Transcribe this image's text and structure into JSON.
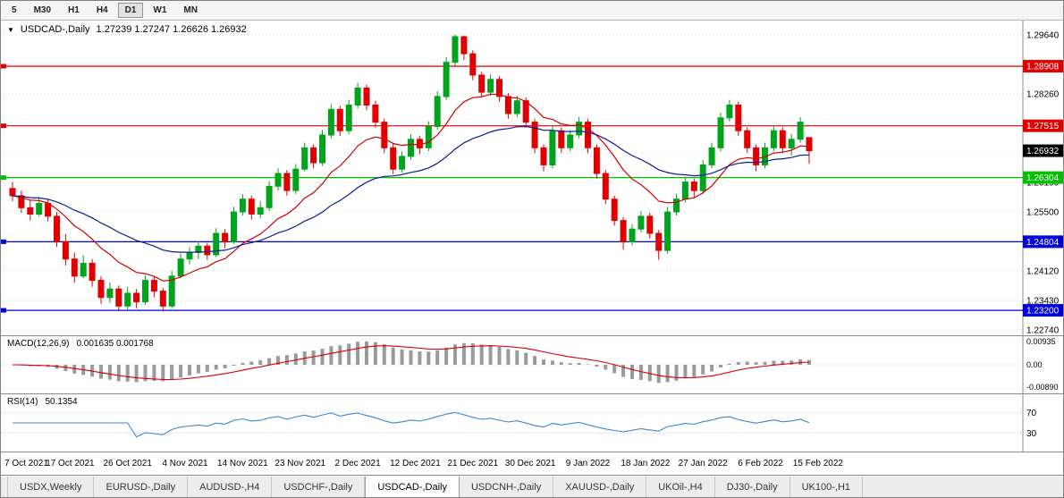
{
  "toolbar": {
    "timeframes": [
      {
        "label": "5",
        "active": false
      },
      {
        "label": "M30",
        "active": false
      },
      {
        "label": "H1",
        "active": false
      },
      {
        "label": "H4",
        "active": false
      },
      {
        "label": "D1",
        "active": true
      },
      {
        "label": "W1",
        "active": false
      },
      {
        "label": "MN",
        "active": false
      }
    ]
  },
  "icons": {
    "chart_dropdown": "▼"
  },
  "main_chart": {
    "title": "USDCAD-,Daily",
    "ohlc_text": "1.27239 1.27247 1.26626 1.26932",
    "axis_ticks": [
      "1.29640",
      "1.28950",
      "1.28260",
      "1.27570",
      "1.26880",
      "1.26190",
      "1.25500",
      "1.24810",
      "1.24120",
      "1.23430",
      "1.22740"
    ],
    "hlines": [
      {
        "price": 1.28908,
        "label": "1.28908",
        "color": "#e00000"
      },
      {
        "price": 1.27515,
        "label": "1.27515",
        "color": "#e00000"
      },
      {
        "price": 1.26304,
        "label": "1.26304",
        "color": "#00c000"
      },
      {
        "price": 1.24804,
        "label": "1.24804",
        "color": "#0000d8"
      },
      {
        "price": 1.232,
        "label": "1.23200",
        "color": "#0000d8"
      }
    ],
    "current_price": {
      "price": 1.26932,
      "label": "1.26932",
      "color": "#000000"
    }
  },
  "macd": {
    "title": "MACD(12,26,9)",
    "values": "0.001635 0.001768",
    "axis_top": "0.00935",
    "axis_mid": "0.00",
    "axis_bottom": "-0.00890"
  },
  "rsi": {
    "title": "RSI(14)",
    "value": "50.1354",
    "level_top": "70",
    "level_bottom": "30"
  },
  "date_axis": {
    "labels": [
      "7 Oct 2021",
      "17 Oct 2021",
      "26 Oct 2021",
      "4 Nov 2021",
      "14 Nov 2021",
      "23 Nov 2021",
      "2 Dec 2021",
      "12 Dec 2021",
      "21 Dec 2021",
      "30 Dec 2021",
      "9 Jan 2022",
      "18 Jan 2022",
      "27 Jan 2022",
      "6 Feb 2022",
      "15 Feb 2022"
    ]
  },
  "tabs": [
    {
      "label": "USDX,Weekly",
      "active": false
    },
    {
      "label": "EURUSD-,Daily",
      "active": false
    },
    {
      "label": "AUDUSD-,H4",
      "active": false
    },
    {
      "label": "USDCHF-,Daily",
      "active": false
    },
    {
      "label": "USDCAD-,Daily",
      "active": true
    },
    {
      "label": "USDCNH-,Daily",
      "active": false
    },
    {
      "label": "XAUUSD-,Daily",
      "active": false
    },
    {
      "label": "UKOil-,H4",
      "active": false
    },
    {
      "label": "DJ30-,Daily",
      "active": false
    },
    {
      "label": "UK100-,H1",
      "active": false
    }
  ],
  "chart_data": {
    "type": "candlestick",
    "symbol": "USDCAD",
    "timeframe": "Daily",
    "price_range": {
      "top": 1.2985,
      "bottom": 1.227
    },
    "ma_fast": {
      "period": 12,
      "color": "#d40000"
    },
    "ma_slow": {
      "period": 30,
      "color": "#0a1d94"
    },
    "colors": {
      "up": "#00a41c",
      "down": "#e00000",
      "macd_hist": "#9a9a9a",
      "macd_signal": "#d40000",
      "rsi_line": "#3d85c8",
      "grid": "#d2d2d2"
    },
    "candles": [
      [
        1.2605,
        1.262,
        1.2575,
        1.2588
      ],
      [
        1.2588,
        1.26,
        1.2548,
        1.256
      ],
      [
        1.256,
        1.2578,
        1.253,
        1.2545
      ],
      [
        1.2545,
        1.2585,
        1.254,
        1.257
      ],
      [
        1.257,
        1.258,
        1.2528,
        1.254
      ],
      [
        1.254,
        1.255,
        1.2468,
        1.248
      ],
      [
        1.248,
        1.2498,
        1.2425,
        1.244
      ],
      [
        1.244,
        1.2455,
        1.2385,
        1.24
      ],
      [
        1.24,
        1.2448,
        1.2395,
        1.243
      ],
      [
        1.243,
        1.244,
        1.2375,
        1.239
      ],
      [
        1.239,
        1.24,
        1.2335,
        1.235
      ],
      [
        1.235,
        1.2385,
        1.2338,
        1.237
      ],
      [
        1.237,
        1.2378,
        1.2318,
        1.233
      ],
      [
        1.233,
        1.2375,
        1.2322,
        1.236
      ],
      [
        1.236,
        1.237,
        1.2325,
        1.234
      ],
      [
        1.234,
        1.2402,
        1.2333,
        1.239
      ],
      [
        1.239,
        1.2398,
        1.235,
        1.2365
      ],
      [
        1.2365,
        1.2372,
        1.2317,
        1.233
      ],
      [
        1.233,
        1.2412,
        1.2325,
        1.24
      ],
      [
        1.24,
        1.2452,
        1.2395,
        1.244
      ],
      [
        1.244,
        1.2468,
        1.2428,
        1.2455
      ],
      [
        1.2455,
        1.2482,
        1.244,
        1.247
      ],
      [
        1.247,
        1.2478,
        1.2438,
        1.245
      ],
      [
        1.245,
        1.2512,
        1.2445,
        1.25
      ],
      [
        1.25,
        1.251,
        1.2465,
        1.248
      ],
      [
        1.248,
        1.2562,
        1.2475,
        1.255
      ],
      [
        1.255,
        1.2592,
        1.2542,
        1.258
      ],
      [
        1.258,
        1.2588,
        1.2532,
        1.2545
      ],
      [
        1.2545,
        1.2575,
        1.2535,
        1.256
      ],
      [
        1.256,
        1.2622,
        1.2552,
        1.261
      ],
      [
        1.261,
        1.2652,
        1.26,
        1.264
      ],
      [
        1.264,
        1.2648,
        1.2588,
        1.26
      ],
      [
        1.26,
        1.2662,
        1.2592,
        1.265
      ],
      [
        1.265,
        1.2712,
        1.2645,
        1.27
      ],
      [
        1.27,
        1.2708,
        1.2652,
        1.2665
      ],
      [
        1.2665,
        1.2742,
        1.2658,
        1.273
      ],
      [
        1.273,
        1.2802,
        1.2722,
        1.279
      ],
      [
        1.279,
        1.2798,
        1.2728,
        1.274
      ],
      [
        1.274,
        1.2812,
        1.2732,
        1.28
      ],
      [
        1.28,
        1.2852,
        1.2792,
        1.284
      ],
      [
        1.284,
        1.2848,
        1.2788,
        1.28
      ],
      [
        1.28,
        1.281,
        1.2748,
        1.276
      ],
      [
        1.276,
        1.2768,
        1.2688,
        1.27
      ],
      [
        1.27,
        1.2712,
        1.2638,
        1.265
      ],
      [
        1.265,
        1.2692,
        1.2642,
        1.268
      ],
      [
        1.268,
        1.2732,
        1.2672,
        1.272
      ],
      [
        1.272,
        1.2728,
        1.2685,
        1.27
      ],
      [
        1.27,
        1.2762,
        1.2692,
        1.275
      ],
      [
        1.275,
        1.2832,
        1.2742,
        1.282
      ],
      [
        1.282,
        1.2912,
        1.2812,
        1.29
      ],
      [
        1.29,
        1.2964,
        1.2892,
        1.296
      ],
      [
        1.296,
        1.2962,
        1.2905,
        1.292
      ],
      [
        1.292,
        1.2928,
        1.2858,
        1.287
      ],
      [
        1.287,
        1.2878,
        1.2818,
        1.283
      ],
      [
        1.283,
        1.2872,
        1.2822,
        1.286
      ],
      [
        1.286,
        1.2868,
        1.2808,
        1.282
      ],
      [
        1.282,
        1.2828,
        1.2768,
        1.278
      ],
      [
        1.278,
        1.2822,
        1.2772,
        1.281
      ],
      [
        1.281,
        1.2818,
        1.2748,
        1.276
      ],
      [
        1.276,
        1.2768,
        1.2688,
        1.27
      ],
      [
        1.27,
        1.2708,
        1.2645,
        1.266
      ],
      [
        1.266,
        1.2752,
        1.2652,
        1.274
      ],
      [
        1.274,
        1.2748,
        1.2688,
        1.27
      ],
      [
        1.27,
        1.2742,
        1.2692,
        1.273
      ],
      [
        1.273,
        1.2772,
        1.2722,
        1.276
      ],
      [
        1.276,
        1.2768,
        1.2688,
        1.27
      ],
      [
        1.27,
        1.2708,
        1.2628,
        1.264
      ],
      [
        1.264,
        1.2648,
        1.2568,
        1.258
      ],
      [
        1.258,
        1.2588,
        1.2518,
        1.253
      ],
      [
        1.253,
        1.2538,
        1.2462,
        1.248
      ],
      [
        1.248,
        1.2522,
        1.2472,
        1.251
      ],
      [
        1.251,
        1.2552,
        1.2502,
        1.254
      ],
      [
        1.254,
        1.2548,
        1.2488,
        1.25
      ],
      [
        1.25,
        1.2508,
        1.2438,
        1.246
      ],
      [
        1.246,
        1.2562,
        1.2452,
        1.255
      ],
      [
        1.255,
        1.2592,
        1.2542,
        1.258
      ],
      [
        1.258,
        1.2632,
        1.2572,
        1.262
      ],
      [
        1.262,
        1.2628,
        1.2585,
        1.26
      ],
      [
        1.26,
        1.2672,
        1.2592,
        1.266
      ],
      [
        1.266,
        1.2712,
        1.2652,
        1.27
      ],
      [
        1.27,
        1.2782,
        1.2692,
        1.277
      ],
      [
        1.277,
        1.2812,
        1.2762,
        1.28
      ],
      [
        1.28,
        1.2808,
        1.2728,
        1.274
      ],
      [
        1.274,
        1.2748,
        1.2688,
        1.27
      ],
      [
        1.27,
        1.2708,
        1.2645,
        1.266
      ],
      [
        1.266,
        1.2712,
        1.2652,
        1.27
      ],
      [
        1.27,
        1.2752,
        1.2692,
        1.274
      ],
      [
        1.274,
        1.2748,
        1.2688,
        1.27
      ],
      [
        1.27,
        1.2732,
        1.2682,
        1.272
      ],
      [
        1.272,
        1.2772,
        1.2712,
        1.276
      ],
      [
        1.27239,
        1.27247,
        1.26626,
        1.26932
      ]
    ]
  }
}
